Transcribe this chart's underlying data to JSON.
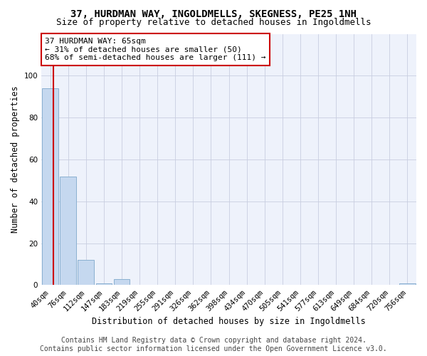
{
  "title": "37, HURDMAN WAY, INGOLDMELLS, SKEGNESS, PE25 1NH",
  "subtitle": "Size of property relative to detached houses in Ingoldmells",
  "xlabel": "Distribution of detached houses by size in Ingoldmells",
  "ylabel": "Number of detached properties",
  "categories": [
    "40sqm",
    "76sqm",
    "112sqm",
    "147sqm",
    "183sqm",
    "219sqm",
    "255sqm",
    "291sqm",
    "326sqm",
    "362sqm",
    "398sqm",
    "434sqm",
    "470sqm",
    "505sqm",
    "541sqm",
    "577sqm",
    "613sqm",
    "649sqm",
    "684sqm",
    "720sqm",
    "756sqm"
  ],
  "values": [
    94,
    52,
    12,
    1,
    3,
    0,
    0,
    0,
    0,
    0,
    0,
    0,
    0,
    0,
    0,
    0,
    0,
    0,
    0,
    0,
    1
  ],
  "bar_color": "#c5d8ef",
  "bar_edge_color": "#8ab0d0",
  "ylim": [
    0,
    120
  ],
  "yticks": [
    0,
    20,
    40,
    60,
    80,
    100
  ],
  "vline_color": "#cc0000",
  "annotation_text": "37 HURDMAN WAY: 65sqm\n← 31% of detached houses are smaller (50)\n68% of semi-detached houses are larger (111) →",
  "annotation_box_color": "#ffffff",
  "annotation_box_edge_color": "#cc0000",
  "footer_line1": "Contains HM Land Registry data © Crown copyright and database right 2024.",
  "footer_line2": "Contains public sector information licensed under the Open Government Licence v3.0.",
  "bg_color": "#eef2fb",
  "grid_color": "#c8cde0",
  "title_fontsize": 10,
  "subtitle_fontsize": 9,
  "axis_label_fontsize": 8.5,
  "tick_fontsize": 7.5,
  "footer_fontsize": 7,
  "annotation_fontsize": 8
}
